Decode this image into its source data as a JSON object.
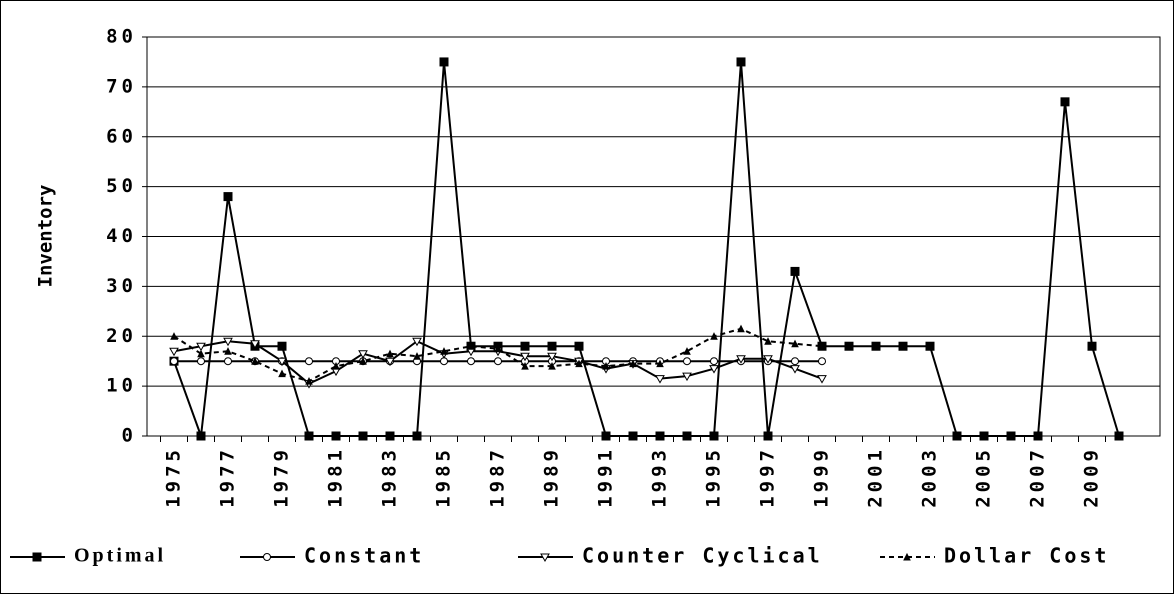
{
  "chart_data": {
    "type": "line",
    "y_label": "Inventory",
    "categories": [
      "1975",
      null,
      "1977",
      null,
      "1979",
      null,
      "1981",
      null,
      "1983",
      null,
      "1985",
      null,
      "1987",
      null,
      "1989",
      null,
      "1991",
      null,
      "1993",
      null,
      "1995",
      null,
      "1997",
      null,
      "1999",
      null,
      "2001",
      null,
      "2003",
      null,
      "2005",
      null,
      "2007",
      null,
      "2009",
      null
    ],
    "series": [
      {
        "name": "Optimal",
        "color": "#000000",
        "marker": "square",
        "dashed": false,
        "values": [
          15,
          0,
          48,
          18,
          18,
          0,
          0,
          0,
          0,
          0,
          75,
          18,
          18,
          18,
          18,
          18,
          0,
          0,
          0,
          0,
          0,
          75,
          0,
          33,
          18,
          18,
          18,
          18,
          18,
          0,
          0,
          0,
          0,
          67,
          18,
          0
        ]
      },
      {
        "name": "Constant",
        "color": "#000000",
        "marker": "circle",
        "dashed": false,
        "values": [
          15,
          15,
          15,
          15,
          15,
          15,
          15,
          15,
          15,
          15,
          15,
          15,
          15,
          15,
          15,
          15,
          15,
          15,
          15,
          15,
          15,
          15,
          15,
          15,
          15,
          null,
          null,
          null,
          null,
          null,
          null,
          null,
          null,
          null,
          null,
          null
        ]
      },
      {
        "name": "Counter Cyclical",
        "color": "#000000",
        "marker": "triangle",
        "dashed": false,
        "values": [
          17,
          18,
          19,
          18.5,
          15,
          10.5,
          13,
          16.5,
          15,
          19,
          16.5,
          17,
          17,
          16,
          16,
          15,
          13.5,
          14.5,
          11.5,
          12,
          13.5,
          15.5,
          15.5,
          13.5,
          11.5,
          null,
          null,
          null,
          null,
          null,
          null,
          null,
          null,
          null,
          null,
          null
        ]
      },
      {
        "name": "Dollar Cost",
        "color": "#000000",
        "marker": "small-triangle",
        "dashed": true,
        "values": [
          20,
          16.5,
          17,
          15,
          12.5,
          11,
          14,
          15,
          16.5,
          16,
          17,
          18,
          17.5,
          14,
          14,
          14.5,
          14,
          14.5,
          14.5,
          17,
          20,
          21.5,
          19,
          18.5,
          18,
          null,
          null,
          null,
          null,
          null,
          null,
          null,
          null,
          null,
          null,
          null
        ]
      }
    ],
    "ylim": [
      0,
      80
    ],
    "yticks": [
      0,
      10,
      20,
      30,
      40,
      50,
      60,
      70,
      80
    ],
    "grid": true
  }
}
